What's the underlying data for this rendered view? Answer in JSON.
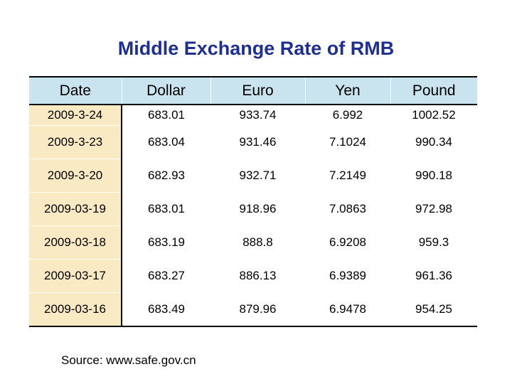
{
  "title": "Middle Exchange Rate of RMB",
  "table": {
    "headers": [
      "Date",
      "Dollar",
      "Euro",
      "Yen",
      "Pound"
    ],
    "rows": [
      [
        "2009-3-24",
        "683.01",
        "933.74",
        "6.992",
        "1002.52"
      ],
      [
        "2009-3-23",
        "683.04",
        "931.46",
        "7.1024",
        "990.34"
      ],
      [
        "2009-3-20",
        "682.93",
        "932.71",
        "7.2149",
        "990.18"
      ],
      [
        "2009-03-19",
        "683.01",
        "918.96",
        "7.0863",
        "972.98"
      ],
      [
        "2009-03-18",
        "683.19",
        "888.8",
        "6.9208",
        "959.3"
      ],
      [
        "2009-03-17",
        "683.27",
        "886.13",
        "6.9389",
        "961.36"
      ],
      [
        "2009-03-16",
        "683.49",
        "879.96",
        "6.9478",
        "954.25"
      ]
    ]
  },
  "source": "Source: www.safe.gov.cn",
  "colors": {
    "title": "#1f2f8f",
    "header_bg": "#c9e4ee",
    "date_col_bg": "#faeac4"
  }
}
